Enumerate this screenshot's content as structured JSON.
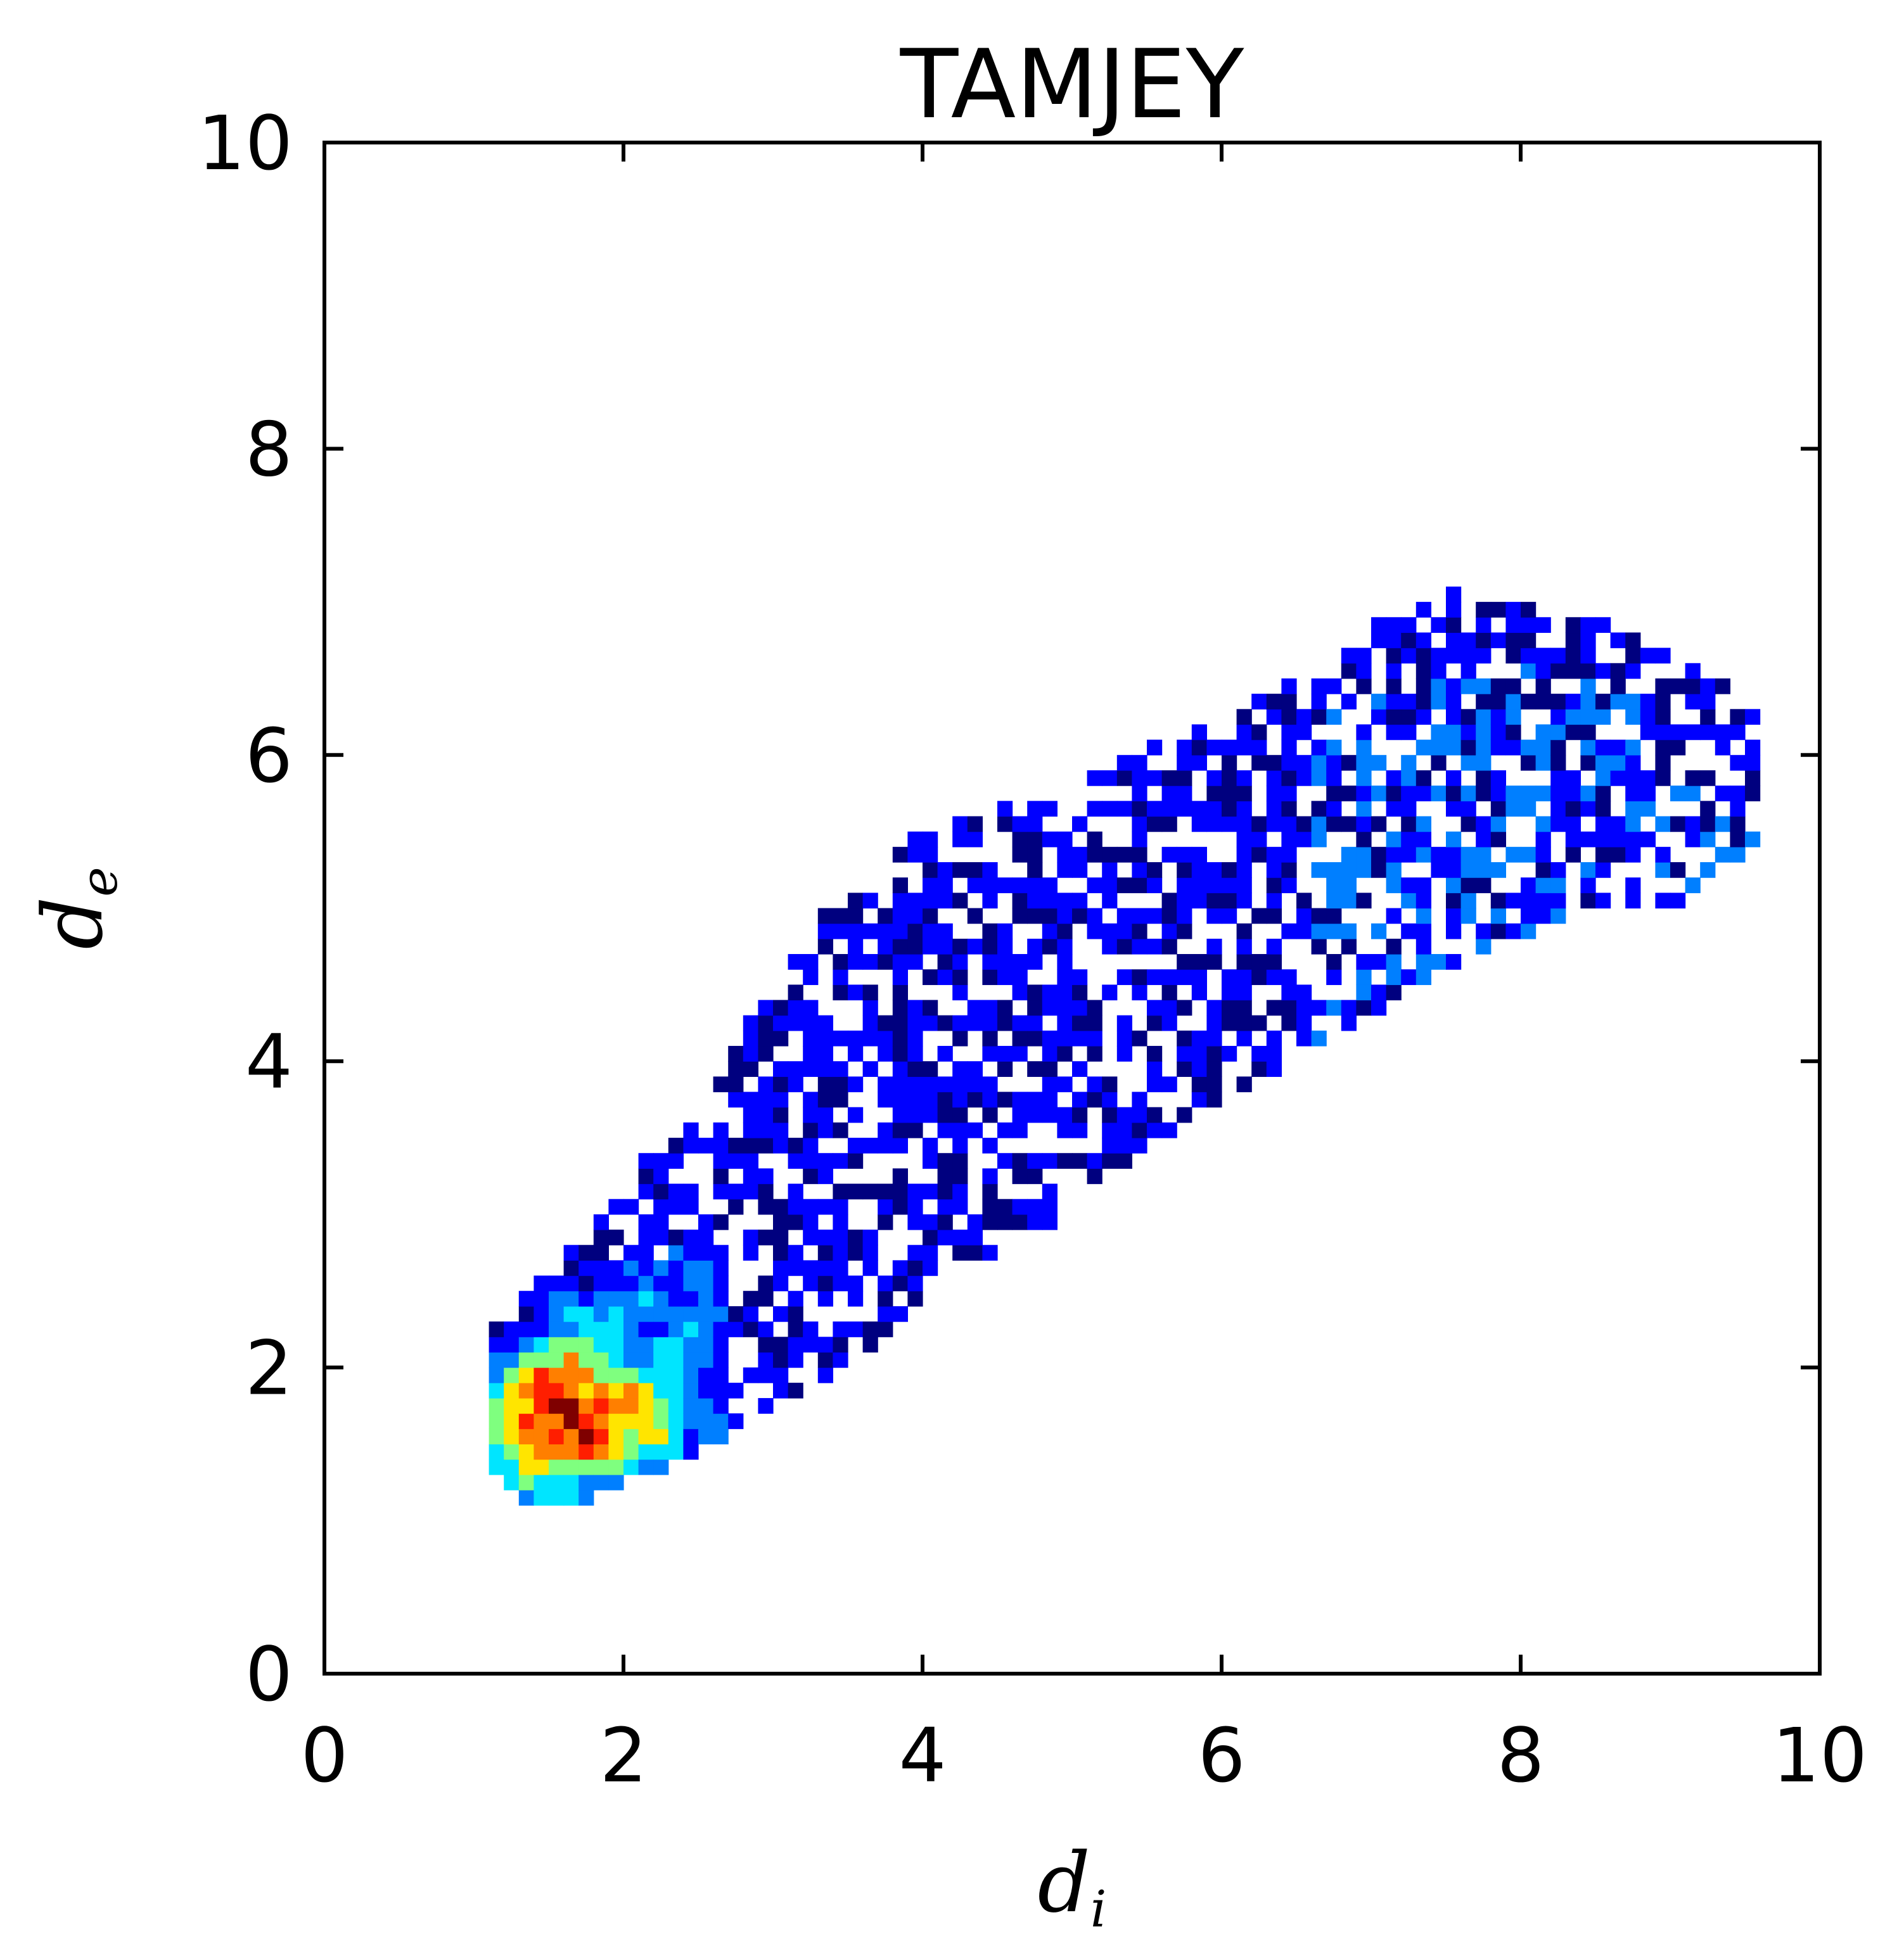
{
  "chart_data": {
    "type": "heatmap",
    "title": "TAMJEY",
    "xlabel": {
      "main": "d",
      "sub": "i"
    },
    "ylabel": {
      "main": "d",
      "sub": "e"
    },
    "xlim": [
      0,
      10
    ],
    "ylim": [
      0,
      10
    ],
    "xticks": [
      "0",
      "2",
      "4",
      "6",
      "8",
      "10"
    ],
    "yticks": [
      "0",
      "2",
      "4",
      "6",
      "8",
      "10"
    ],
    "grid": false,
    "colormap": "jet",
    "colors": [
      "#00007f",
      "#0000ff",
      "#007fff",
      "#00e5ff",
      "#7fff7f",
      "#ffe500",
      "#ff7f00",
      "#ff1e00",
      "#7f0000"
    ],
    "bin_size": 0.1,
    "points": [
      [
        1.5,
        1.7,
        1.0
      ],
      [
        1.6,
        1.6,
        0.95
      ],
      [
        1.4,
        1.8,
        0.9
      ],
      [
        1.7,
        1.5,
        0.9
      ],
      [
        1.8,
        1.7,
        0.85
      ],
      [
        1.5,
        1.5,
        0.85
      ],
      [
        1.3,
        1.6,
        0.8
      ],
      [
        2.0,
        1.7,
        0.75
      ],
      [
        1.6,
        1.9,
        0.75
      ],
      [
        1.9,
        1.5,
        0.7
      ],
      [
        1.4,
        1.4,
        0.7
      ],
      [
        2.1,
        1.6,
        0.65
      ],
      [
        1.2,
        1.5,
        0.55
      ],
      [
        1.7,
        2.0,
        0.55
      ],
      [
        2.2,
        1.8,
        0.45
      ],
      [
        1.3,
        1.3,
        0.5
      ],
      [
        2.3,
        2.0,
        0.35
      ],
      [
        1.8,
        2.1,
        0.4
      ],
      [
        2.4,
        2.2,
        0.3
      ],
      [
        1.1,
        1.3,
        0.35
      ],
      [
        1.2,
        1.1,
        0.3
      ],
      [
        1.5,
        1.2,
        0.4
      ],
      [
        1.0,
        1.4,
        0.25
      ],
      [
        2.2,
        1.4,
        0.3
      ],
      [
        2.5,
        1.6,
        0.2
      ],
      [
        1.9,
        2.3,
        0.28
      ],
      [
        2.4,
        2.5,
        0.25
      ],
      [
        2.1,
        2.4,
        0.3
      ],
      [
        1.6,
        2.2,
        0.35
      ]
    ],
    "band": [
      {
        "x": 1.1,
        "ylow": 1.3,
        "yhigh": 2.3
      },
      {
        "x": 1.5,
        "ylow": 1.1,
        "yhigh": 2.7
      },
      {
        "x": 2.0,
        "ylow": 1.3,
        "yhigh": 3.2
      },
      {
        "x": 2.5,
        "ylow": 1.5,
        "yhigh": 3.8
      },
      {
        "x": 3.0,
        "ylow": 1.8,
        "yhigh": 4.5
      },
      {
        "x": 3.5,
        "ylow": 2.1,
        "yhigh": 5.2
      },
      {
        "x": 4.0,
        "ylow": 2.5,
        "yhigh": 5.5
      },
      {
        "x": 4.5,
        "ylow": 2.8,
        "yhigh": 5.6
      },
      {
        "x": 5.0,
        "ylow": 3.1,
        "yhigh": 5.8
      },
      {
        "x": 5.5,
        "ylow": 3.5,
        "yhigh": 6.0
      },
      {
        "x": 6.0,
        "ylow": 3.8,
        "yhigh": 6.2
      },
      {
        "x": 6.5,
        "ylow": 4.1,
        "yhigh": 6.5
      },
      {
        "x": 7.0,
        "ylow": 4.4,
        "yhigh": 6.8
      },
      {
        "x": 7.5,
        "ylow": 4.7,
        "yhigh": 7.0
      },
      {
        "x": 8.0,
        "ylow": 4.9,
        "yhigh": 6.9
      },
      {
        "x": 8.5,
        "ylow": 5.0,
        "yhigh": 6.8
      },
      {
        "x": 9.0,
        "ylow": 5.1,
        "yhigh": 6.6
      },
      {
        "x": 9.5,
        "ylow": 5.4,
        "yhigh": 6.3
      }
    ]
  }
}
